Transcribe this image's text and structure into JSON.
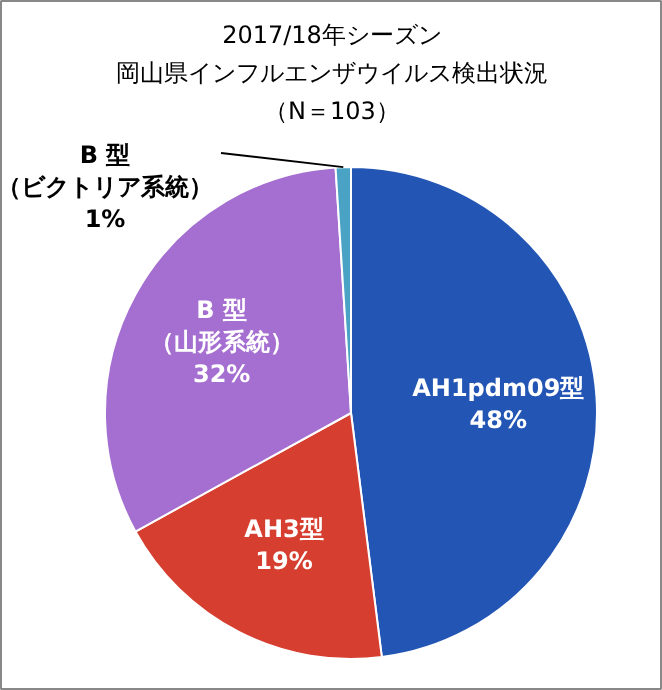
{
  "chart_data": {
    "type": "pie",
    "title": "2017/18年シーズン",
    "subtitle": "岡山県インフルエンザウイルス検出状況",
    "annotations": [
      "（N＝103）"
    ],
    "categories": [
      "AH1pdm09型",
      "AH3型",
      "B 型（山形系統）",
      "B 型（ビクトリア系統）"
    ],
    "values": [
      48,
      19,
      32,
      1
    ],
    "value_labels": [
      "48%",
      "19%",
      "32%",
      "1%"
    ],
    "colors": [
      "#2356b4",
      "#d63e30",
      "#a46fd0",
      "#4aa3c4"
    ]
  }
}
